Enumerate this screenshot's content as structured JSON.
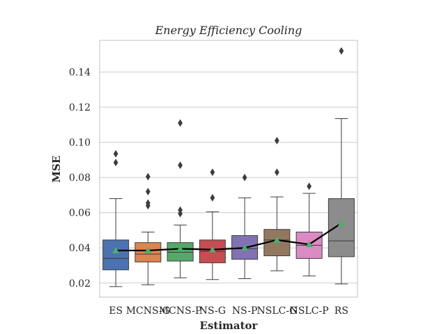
{
  "chart_data": {
    "type": "box",
    "title": "Energy Efficiency Cooling",
    "xlabel": "Estimator",
    "ylabel": "MSE",
    "ylim": [
      0.012,
      0.158
    ],
    "yticks": [
      0.02,
      0.04,
      0.06,
      0.08,
      0.1,
      0.12,
      0.14
    ],
    "ytick_labels": [
      "0.02",
      "0.04",
      "0.06",
      "0.08",
      "0.10",
      "0.12",
      "0.14"
    ],
    "grid": true,
    "categories": [
      "ES",
      "MCNS-G",
      "MCNS-P",
      "NS-G",
      "NS-P",
      "NSLC-G",
      "NSLC-P",
      "RS"
    ],
    "boxes": [
      {
        "q1": 0.0275,
        "median": 0.034,
        "q3": 0.0445,
        "whisker_low": 0.018,
        "whisker_high": 0.068,
        "mean": 0.0385,
        "outliers": [
          0.0935,
          0.0885
        ],
        "color": "#4c72b0"
      },
      {
        "q1": 0.032,
        "median": 0.0365,
        "q3": 0.043,
        "whisker_low": 0.019,
        "whisker_high": 0.049,
        "mean": 0.0385,
        "outliers": [
          0.0805,
          0.072,
          0.0655,
          0.064
        ],
        "color": "#dd8452"
      },
      {
        "q1": 0.0325,
        "median": 0.0375,
        "q3": 0.043,
        "whisker_low": 0.023,
        "whisker_high": 0.053,
        "mean": 0.0395,
        "outliers": [
          0.111,
          0.087,
          0.0615,
          0.0595
        ],
        "color": "#55a868"
      },
      {
        "q1": 0.0315,
        "median": 0.038,
        "q3": 0.0445,
        "whisker_low": 0.022,
        "whisker_high": 0.0605,
        "mean": 0.039,
        "outliers": [
          0.083,
          0.0685
        ],
        "color": "#c44e52"
      },
      {
        "q1": 0.0335,
        "median": 0.0395,
        "q3": 0.047,
        "whisker_low": 0.0225,
        "whisker_high": 0.0685,
        "mean": 0.04,
        "outliers": [
          0.08
        ],
        "color": "#8172b3"
      },
      {
        "q1": 0.0355,
        "median": 0.0445,
        "q3": 0.0505,
        "whisker_low": 0.027,
        "whisker_high": 0.069,
        "mean": 0.0445,
        "outliers": [
          0.101,
          0.083
        ],
        "color": "#937860"
      },
      {
        "q1": 0.034,
        "median": 0.0415,
        "q3": 0.049,
        "whisker_low": 0.024,
        "whisker_high": 0.071,
        "mean": 0.042,
        "outliers": [
          0.075
        ],
        "color": "#da8bc3"
      },
      {
        "q1": 0.035,
        "median": 0.044,
        "q3": 0.068,
        "whisker_low": 0.0195,
        "whisker_high": 0.1135,
        "mean": 0.054,
        "outliers": [
          0.152
        ],
        "color": "#8c8c8c"
      }
    ],
    "mean_line_color": "#000000",
    "mean_marker_color": "#4caf6a",
    "outlier_color": "#3d3d3d"
  }
}
